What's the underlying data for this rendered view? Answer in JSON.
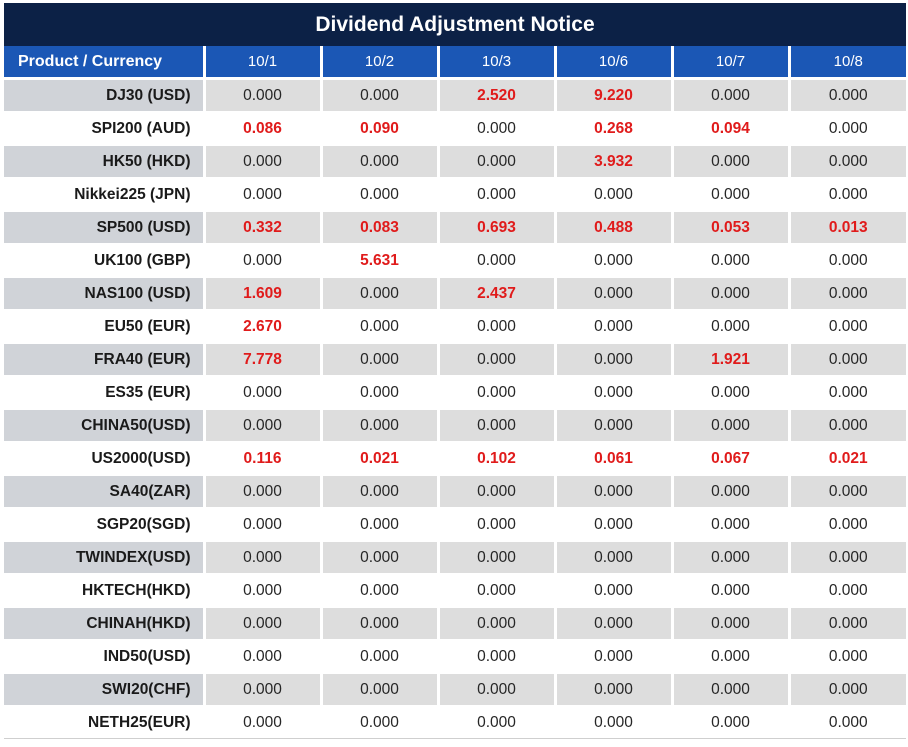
{
  "title": "Dividend Adjustment Notice",
  "colors": {
    "title_bar_bg": "#0c2146",
    "header_bg": "#1b57b5",
    "striped_value_bg": "#dddddd",
    "striped_product_bg": "#d0d3d8",
    "value_text": "#262626",
    "highlight_red": "#e01b1b"
  },
  "table": {
    "product_header": "Product / Currency",
    "date_headers": [
      "10/1",
      "10/2",
      "10/3",
      "10/6",
      "10/7",
      "10/8"
    ],
    "rows": [
      {
        "product": "DJ30 (USD)",
        "values": [
          "0.000",
          "0.000",
          "2.520",
          "9.220",
          "0.000",
          "0.000"
        ],
        "red": [
          false,
          false,
          true,
          true,
          false,
          false
        ]
      },
      {
        "product": "SPI200 (AUD)",
        "values": [
          "0.086",
          "0.090",
          "0.000",
          "0.268",
          "0.094",
          "0.000"
        ],
        "red": [
          true,
          true,
          false,
          true,
          true,
          false
        ]
      },
      {
        "product": "HK50 (HKD)",
        "values": [
          "0.000",
          "0.000",
          "0.000",
          "3.932",
          "0.000",
          "0.000"
        ],
        "red": [
          false,
          false,
          false,
          true,
          false,
          false
        ]
      },
      {
        "product": "Nikkei225 (JPN)",
        "values": [
          "0.000",
          "0.000",
          "0.000",
          "0.000",
          "0.000",
          "0.000"
        ],
        "red": [
          false,
          false,
          false,
          false,
          false,
          false
        ]
      },
      {
        "product": "SP500 (USD)",
        "values": [
          "0.332",
          "0.083",
          "0.693",
          "0.488",
          "0.053",
          "0.013"
        ],
        "red": [
          true,
          true,
          true,
          true,
          true,
          true
        ]
      },
      {
        "product": "UK100 (GBP)",
        "values": [
          "0.000",
          "5.631",
          "0.000",
          "0.000",
          "0.000",
          "0.000"
        ],
        "red": [
          false,
          true,
          false,
          false,
          false,
          false
        ]
      },
      {
        "product": "NAS100 (USD)",
        "values": [
          "1.609",
          "0.000",
          "2.437",
          "0.000",
          "0.000",
          "0.000"
        ],
        "red": [
          true,
          false,
          true,
          false,
          false,
          false
        ]
      },
      {
        "product": "EU50 (EUR)",
        "values": [
          "2.670",
          "0.000",
          "0.000",
          "0.000",
          "0.000",
          "0.000"
        ],
        "red": [
          true,
          false,
          false,
          false,
          false,
          false
        ]
      },
      {
        "product": "FRA40 (EUR)",
        "values": [
          "7.778",
          "0.000",
          "0.000",
          "0.000",
          "1.921",
          "0.000"
        ],
        "red": [
          true,
          false,
          false,
          false,
          true,
          false
        ]
      },
      {
        "product": "ES35 (EUR)",
        "values": [
          "0.000",
          "0.000",
          "0.000",
          "0.000",
          "0.000",
          "0.000"
        ],
        "red": [
          false,
          false,
          false,
          false,
          false,
          false
        ]
      },
      {
        "product": "CHINA50(USD)",
        "values": [
          "0.000",
          "0.000",
          "0.000",
          "0.000",
          "0.000",
          "0.000"
        ],
        "red": [
          false,
          false,
          false,
          false,
          false,
          false
        ]
      },
      {
        "product": "US2000(USD)",
        "values": [
          "0.116",
          "0.021",
          "0.102",
          "0.061",
          "0.067",
          "0.021"
        ],
        "red": [
          true,
          true,
          true,
          true,
          true,
          true
        ]
      },
      {
        "product": "SA40(ZAR)",
        "values": [
          "0.000",
          "0.000",
          "0.000",
          "0.000",
          "0.000",
          "0.000"
        ],
        "red": [
          false,
          false,
          false,
          false,
          false,
          false
        ]
      },
      {
        "product": "SGP20(SGD)",
        "values": [
          "0.000",
          "0.000",
          "0.000",
          "0.000",
          "0.000",
          "0.000"
        ],
        "red": [
          false,
          false,
          false,
          false,
          false,
          false
        ]
      },
      {
        "product": "TWINDEX(USD)",
        "values": [
          "0.000",
          "0.000",
          "0.000",
          "0.000",
          "0.000",
          "0.000"
        ],
        "red": [
          false,
          false,
          false,
          false,
          false,
          false
        ]
      },
      {
        "product": "HKTECH(HKD)",
        "values": [
          "0.000",
          "0.000",
          "0.000",
          "0.000",
          "0.000",
          "0.000"
        ],
        "red": [
          false,
          false,
          false,
          false,
          false,
          false
        ]
      },
      {
        "product": "CHINAH(HKD)",
        "values": [
          "0.000",
          "0.000",
          "0.000",
          "0.000",
          "0.000",
          "0.000"
        ],
        "red": [
          false,
          false,
          false,
          false,
          false,
          false
        ]
      },
      {
        "product": "IND50(USD)",
        "values": [
          "0.000",
          "0.000",
          "0.000",
          "0.000",
          "0.000",
          "0.000"
        ],
        "red": [
          false,
          false,
          false,
          false,
          false,
          false
        ]
      },
      {
        "product": "SWI20(CHF)",
        "values": [
          "0.000",
          "0.000",
          "0.000",
          "0.000",
          "0.000",
          "0.000"
        ],
        "red": [
          false,
          false,
          false,
          false,
          false,
          false
        ]
      },
      {
        "product": "NETH25(EUR)",
        "values": [
          "0.000",
          "0.000",
          "0.000",
          "0.000",
          "0.000",
          "0.000"
        ],
        "red": [
          false,
          false,
          false,
          false,
          false,
          false
        ]
      }
    ]
  }
}
